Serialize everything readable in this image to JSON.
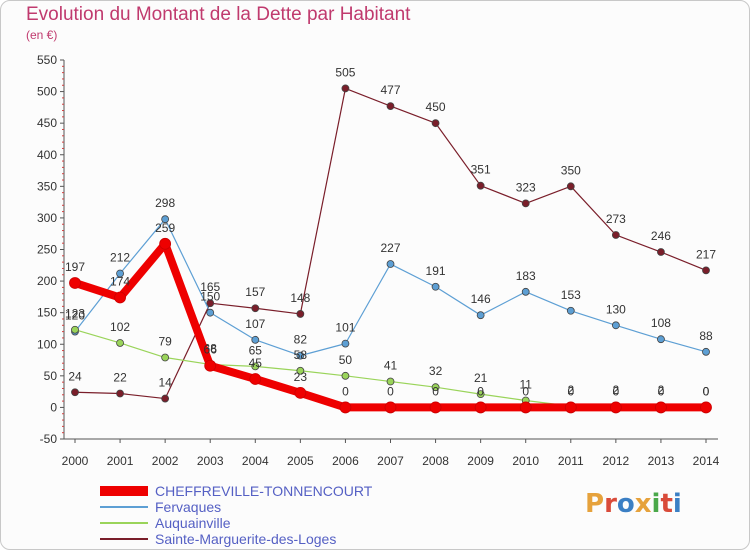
{
  "header": {
    "title": "Evolution du Montant de la Dette par Habitant",
    "subtitle": "(en €)"
  },
  "logo": {
    "text": "Proxiti",
    "colors": [
      "#e6a23c",
      "#d94b3a",
      "#3b7fc4",
      "#e6a23c",
      "#4aa84a",
      "#d94b3a",
      "#3b7fc4"
    ]
  },
  "chart_data": {
    "type": "line",
    "x": [
      "2000",
      "2001",
      "2002",
      "2003",
      "2004",
      "2005",
      "2006",
      "2007",
      "2008",
      "2009",
      "2010",
      "2011",
      "2012",
      "2013",
      "2014"
    ],
    "ylim": [
      -50,
      550
    ],
    "yticks": [
      -50,
      0,
      50,
      100,
      150,
      200,
      250,
      300,
      350,
      400,
      450,
      500,
      550
    ],
    "grid": false,
    "legend_position": "bottom-left",
    "series": [
      {
        "name": "Sainte-Marguerite-des-Loges",
        "color": "#7a1e2a",
        "width": 1.2,
        "values": [
          24,
          22,
          14,
          165,
          157,
          148,
          505,
          477,
          450,
          351,
          323,
          350,
          273,
          246,
          217
        ]
      },
      {
        "name": "Fervaques",
        "color": "#5d9fd4",
        "width": 1.2,
        "values": [
          120,
          212,
          298,
          150,
          107,
          82,
          101,
          227,
          191,
          146,
          183,
          153,
          130,
          108,
          88
        ]
      },
      {
        "name": "Auquainville",
        "color": "#9ad45a",
        "width": 1.2,
        "values": [
          123,
          102,
          79,
          68,
          65,
          58,
          50,
          41,
          32,
          21,
          11,
          2,
          2,
          2,
          0
        ]
      },
      {
        "name": "CHEFFREVILLE-TONNENCOURT",
        "color": "#ee0000",
        "width": 8,
        "values": [
          197,
          174,
          259,
          66,
          45,
          23,
          0,
          0,
          0,
          0,
          0,
          0,
          0,
          0,
          0
        ]
      }
    ]
  }
}
